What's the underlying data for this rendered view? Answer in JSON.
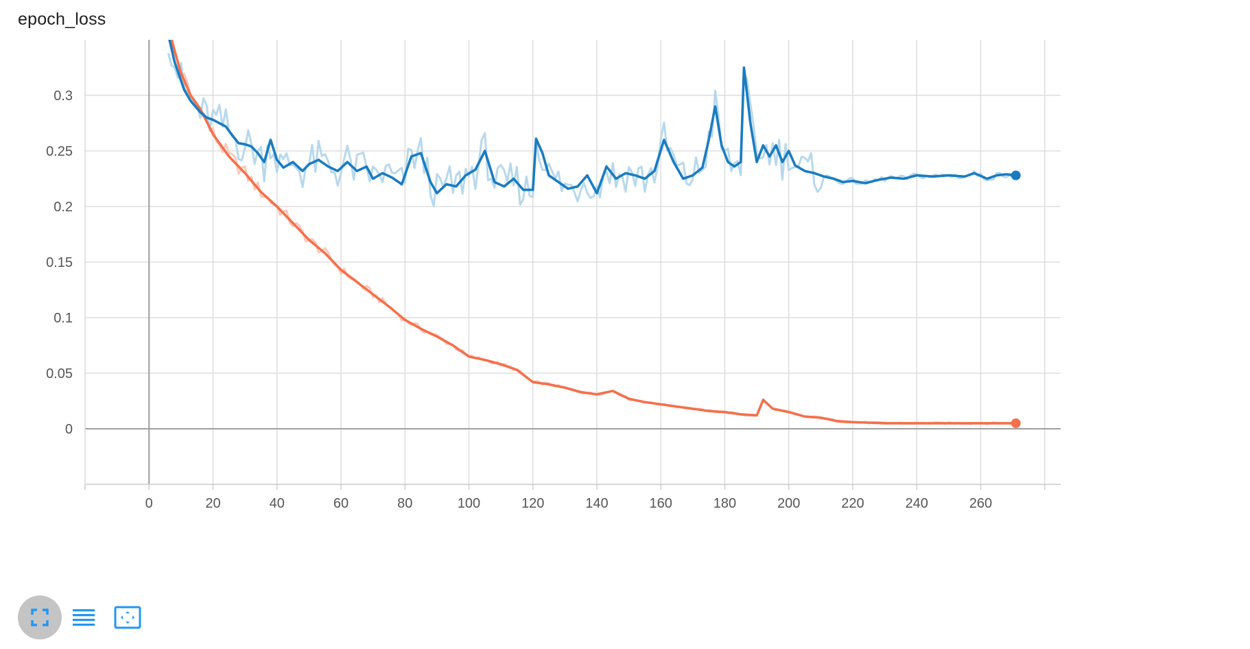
{
  "card": {
    "title": "epoch_loss"
  },
  "colors": {
    "train_series": "#f4704b",
    "train_series_raw": "#f9c9bb",
    "validation_series": "#1a7cc0",
    "validation_series_raw": "#b7d8ec",
    "grid": "#dddddd",
    "axis_zero": "#9e9e9e",
    "tool_icon": "#2196f3"
  },
  "toolbar": {
    "buttons": [
      {
        "icon": "fullscreen-icon",
        "active": true
      },
      {
        "icon": "list-icon",
        "active": false
      },
      {
        "icon": "fit-domain-icon",
        "active": false
      }
    ]
  },
  "chart_data": {
    "type": "line",
    "title": "epoch_loss",
    "xlabel": "",
    "ylabel": "",
    "xlim": [
      -20,
      285
    ],
    "ylim": [
      -0.05,
      0.35
    ],
    "x_ticks": [
      0,
      20,
      40,
      60,
      80,
      100,
      120,
      140,
      160,
      180,
      200,
      220,
      240,
      260
    ],
    "y_ticks": [
      0,
      0.05,
      0.1,
      0.15,
      0.2,
      0.25,
      0.3
    ],
    "x_tick_labels": [
      "0",
      "20",
      "40",
      "60",
      "80",
      "100",
      "120",
      "140",
      "160",
      "180",
      "200",
      "220",
      "240",
      "260"
    ],
    "y_tick_labels": [
      "0",
      "0.05",
      "0.1",
      "0.15",
      "0.2",
      "0.25",
      "0.3"
    ],
    "grid": true,
    "legend": "none",
    "series": [
      {
        "style": "smoothed",
        "color": "#f4704b",
        "points": [
          [
            6,
            0.36
          ],
          [
            10,
            0.32
          ],
          [
            13,
            0.3
          ],
          [
            16,
            0.288
          ],
          [
            20,
            0.265
          ],
          [
            25,
            0.245
          ],
          [
            30,
            0.23
          ],
          [
            35,
            0.213
          ],
          [
            40,
            0.2
          ],
          [
            45,
            0.185
          ],
          [
            50,
            0.17
          ],
          [
            55,
            0.158
          ],
          [
            60,
            0.143
          ],
          [
            65,
            0.132
          ],
          [
            70,
            0.121
          ],
          [
            75,
            0.11
          ],
          [
            80,
            0.098
          ],
          [
            85,
            0.09
          ],
          [
            90,
            0.083
          ],
          [
            95,
            0.075
          ],
          [
            100,
            0.065
          ],
          [
            105,
            0.062
          ],
          [
            110,
            0.058
          ],
          [
            115,
            0.053
          ],
          [
            120,
            0.042
          ],
          [
            125,
            0.04
          ],
          [
            130,
            0.037
          ],
          [
            135,
            0.033
          ],
          [
            140,
            0.031
          ],
          [
            145,
            0.034
          ],
          [
            150,
            0.027
          ],
          [
            155,
            0.024
          ],
          [
            160,
            0.022
          ],
          [
            165,
            0.02
          ],
          [
            170,
            0.018
          ],
          [
            175,
            0.016
          ],
          [
            180,
            0.015
          ],
          [
            185,
            0.013
          ],
          [
            190,
            0.012
          ],
          [
            192,
            0.026
          ],
          [
            195,
            0.018
          ],
          [
            200,
            0.015
          ],
          [
            205,
            0.011
          ],
          [
            210,
            0.01
          ],
          [
            215,
            0.007
          ],
          [
            220,
            0.006
          ],
          [
            230,
            0.005
          ],
          [
            240,
            0.005
          ],
          [
            250,
            0.005
          ],
          [
            260,
            0.005
          ],
          [
            271,
            0.005
          ]
        ]
      },
      {
        "style": "smoothed",
        "color": "#1a7cc0",
        "points": [
          [
            6,
            0.355
          ],
          [
            8,
            0.33
          ],
          [
            11,
            0.305
          ],
          [
            13,
            0.295
          ],
          [
            16,
            0.285
          ],
          [
            18,
            0.28
          ],
          [
            20,
            0.278
          ],
          [
            22,
            0.275
          ],
          [
            24,
            0.272
          ],
          [
            26,
            0.264
          ],
          [
            28,
            0.257
          ],
          [
            30,
            0.256
          ],
          [
            32,
            0.254
          ],
          [
            34,
            0.248
          ],
          [
            36,
            0.24
          ],
          [
            38,
            0.26
          ],
          [
            40,
            0.242
          ],
          [
            42,
            0.235
          ],
          [
            45,
            0.24
          ],
          [
            48,
            0.232
          ],
          [
            50,
            0.238
          ],
          [
            53,
            0.242
          ],
          [
            56,
            0.236
          ],
          [
            59,
            0.232
          ],
          [
            62,
            0.24
          ],
          [
            65,
            0.232
          ],
          [
            68,
            0.236
          ],
          [
            70,
            0.225
          ],
          [
            73,
            0.23
          ],
          [
            76,
            0.226
          ],
          [
            79,
            0.22
          ],
          [
            82,
            0.245
          ],
          [
            85,
            0.248
          ],
          [
            88,
            0.222
          ],
          [
            90,
            0.212
          ],
          [
            93,
            0.22
          ],
          [
            96,
            0.218
          ],
          [
            99,
            0.228
          ],
          [
            102,
            0.233
          ],
          [
            105,
            0.25
          ],
          [
            108,
            0.222
          ],
          [
            111,
            0.218
          ],
          [
            114,
            0.225
          ],
          [
            117,
            0.215
          ],
          [
            120,
            0.215
          ],
          [
            121,
            0.261
          ],
          [
            123,
            0.248
          ],
          [
            125,
            0.228
          ],
          [
            128,
            0.222
          ],
          [
            131,
            0.216
          ],
          [
            134,
            0.218
          ],
          [
            137,
            0.228
          ],
          [
            140,
            0.212
          ],
          [
            143,
            0.236
          ],
          [
            146,
            0.225
          ],
          [
            149,
            0.23
          ],
          [
            152,
            0.228
          ],
          [
            155,
            0.225
          ],
          [
            158,
            0.232
          ],
          [
            161,
            0.26
          ],
          [
            164,
            0.24
          ],
          [
            167,
            0.225
          ],
          [
            170,
            0.228
          ],
          [
            173,
            0.235
          ],
          [
            175,
            0.26
          ],
          [
            177,
            0.29
          ],
          [
            179,
            0.255
          ],
          [
            181,
            0.24
          ],
          [
            183,
            0.236
          ],
          [
            185,
            0.24
          ],
          [
            186,
            0.325
          ],
          [
            188,
            0.275
          ],
          [
            190,
            0.24
          ],
          [
            192,
            0.255
          ],
          [
            194,
            0.245
          ],
          [
            196,
            0.255
          ],
          [
            198,
            0.24
          ],
          [
            200,
            0.25
          ],
          [
            202,
            0.237
          ],
          [
            205,
            0.232
          ],
          [
            208,
            0.23
          ],
          [
            211,
            0.227
          ],
          [
            214,
            0.225
          ],
          [
            217,
            0.222
          ],
          [
            220,
            0.223
          ],
          [
            224,
            0.221
          ],
          [
            228,
            0.224
          ],
          [
            232,
            0.226
          ],
          [
            236,
            0.225
          ],
          [
            240,
            0.228
          ],
          [
            245,
            0.227
          ],
          [
            250,
            0.228
          ],
          [
            255,
            0.227
          ],
          [
            258,
            0.23
          ],
          [
            262,
            0.225
          ],
          [
            265,
            0.228
          ],
          [
            268,
            0.229
          ],
          [
            271,
            0.228
          ]
        ]
      }
    ]
  }
}
